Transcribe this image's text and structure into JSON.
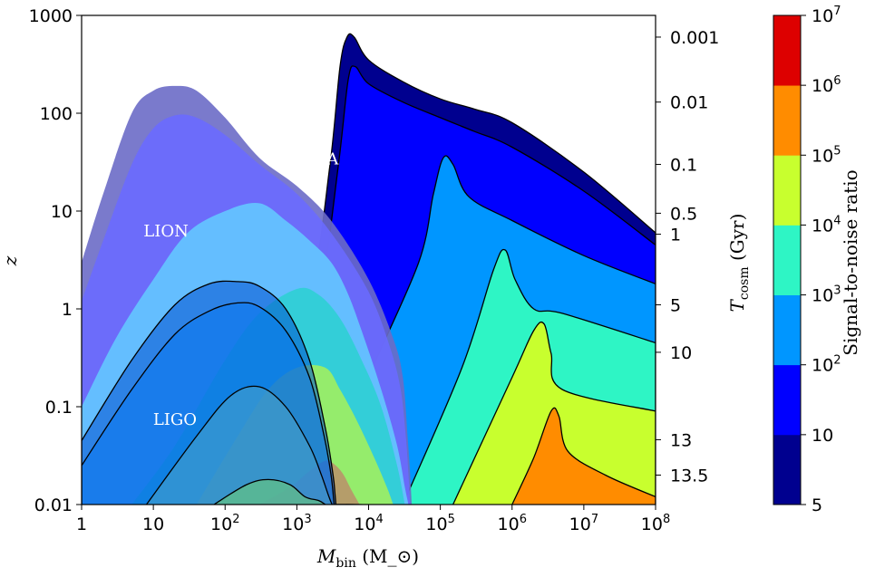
{
  "chart_data": {
    "type": "area",
    "title": "",
    "xlabel": "M_bin (M_⊙)",
    "ylabel": "z",
    "ylabel_right": "T_cosm (Gyr)",
    "xscale": "log",
    "yscale": "log",
    "xlim": [
      1,
      100000000
    ],
    "ylim": [
      0.01,
      1000
    ],
    "x_ticks": [
      {
        "v": 1,
        "b": "1",
        "e": ""
      },
      {
        "v": 10,
        "b": "10",
        "e": ""
      },
      {
        "v": 100,
        "b": "10",
        "e": "2"
      },
      {
        "v": 1000,
        "b": "10",
        "e": "3"
      },
      {
        "v": 10000,
        "b": "10",
        "e": "4"
      },
      {
        "v": 100000,
        "b": "10",
        "e": "5"
      },
      {
        "v": 1000000,
        "b": "10",
        "e": "6"
      },
      {
        "v": 10000000,
        "b": "10",
        "e": "7"
      },
      {
        "v": 100000000,
        "b": "10",
        "e": "8"
      }
    ],
    "y_ticks": [
      {
        "v": 0.01,
        "label": "0.01"
      },
      {
        "v": 0.1,
        "label": "0.1"
      },
      {
        "v": 1,
        "label": "1"
      },
      {
        "v": 10,
        "label": "10"
      },
      {
        "v": 100,
        "label": "100"
      },
      {
        "v": 1000,
        "label": "1000"
      }
    ],
    "right_ticks": [
      {
        "z": 600,
        "label": "0.001"
      },
      {
        "z": 130,
        "label": "0.01"
      },
      {
        "z": 30,
        "label": "0.1"
      },
      {
        "z": 9.5,
        "label": "0.5"
      },
      {
        "z": 5.8,
        "label": "1"
      },
      {
        "z": 1.1,
        "label": "5"
      },
      {
        "z": 0.36,
        "label": "10"
      },
      {
        "z": 0.046,
        "label": "13"
      },
      {
        "z": 0.02,
        "label": "13.5"
      }
    ],
    "colorbar": {
      "label": "Signal-to-noise ratio",
      "levels": [
        {
          "b": "5",
          "e": ""
        },
        {
          "b": "10",
          "e": ""
        },
        {
          "b": "10",
          "e": "2"
        },
        {
          "b": "10",
          "e": "3"
        },
        {
          "b": "10",
          "e": "4"
        },
        {
          "b": "10",
          "e": "5"
        },
        {
          "b": "10",
          "e": "6"
        },
        {
          "b": "10",
          "e": "7"
        }
      ],
      "colors": [
        "#00008f",
        "#0000ff",
        "#0096ff",
        "#2ef5c5",
        "#c8ff2e",
        "#ff8c00",
        "#dd0000"
      ]
    },
    "annotations": [
      {
        "text": "LISA",
        "x": 2000,
        "y": 30
      },
      {
        "text": "LION",
        "x": 15,
        "y": 5.5
      },
      {
        "text": "LIGO",
        "x": 20,
        "y": 0.065
      }
    ],
    "detectors": [
      {
        "name": "LISA",
        "outline": "#000000",
        "snr_contours": [
          {
            "level": "5",
            "color": "#00008f",
            "x": [
              280,
              1500,
              2900,
              4000,
              5000,
              6300,
              10000,
              30000,
              100000,
              300000,
              1000000,
              10000000,
              100000000
            ],
            "y": [
              0.01,
              1.2,
              30,
              300,
              600,
              600,
              350,
              210,
              140,
              110,
              80,
              25,
              6
            ]
          },
          {
            "level": "10",
            "color": "#0000ff",
            "x": [
              550,
              2000,
              3800,
              5200,
              6500,
              10000,
              30000,
              100000,
              300000,
              1000000,
              10000000,
              100000000
            ],
            "y": [
              0.01,
              1,
              30,
              220,
              300,
              200,
              130,
              90,
              65,
              45,
              16,
              4.5
            ]
          },
          {
            "level": "10^2",
            "color": "#0096ff",
            "x": [
              2000,
              10000,
              50000,
              80000,
              110000,
              150000,
              250000,
              1000000,
              10000000,
              100000000
            ],
            "y": [
              0.01,
              0.2,
              3,
              15,
              35,
              30,
              14,
              8,
              3.5,
              1.8
            ]
          },
          {
            "level": "10^3",
            "color": "#2ef5c5",
            "x": [
              30000,
              200000,
              550000,
              800000,
              1100000,
              2000000,
              5000000,
              100000000
            ],
            "y": [
              0.01,
              0.25,
              2.5,
              4,
              2,
              1,
              0.9,
              0.45
            ]
          },
          {
            "level": "10^4",
            "color": "#c8ff2e",
            "x": [
              150000,
              1000000,
              2000000,
              2800000,
              3500000,
              5000000,
              100000000
            ],
            "y": [
              0.01,
              0.2,
              0.6,
              0.7,
              0.35,
              0.15,
              0.09
            ]
          },
          {
            "level": "10^5",
            "color": "#ff8c00",
            "x": [
              1000000,
              2000000,
              3500000,
              4500000,
              6000000,
              20000000,
              100000000
            ],
            "y": [
              0.01,
              0.03,
              0.09,
              0.08,
              0.035,
              0.02,
              0.012
            ]
          }
        ]
      },
      {
        "name": "LION",
        "outline": "none",
        "snr_contours": [
          {
            "level": "5",
            "color": "#6b6bc6",
            "x": [
              1,
              2,
              5,
              10,
              20,
              40,
              100,
              300,
              1000,
              3000,
              10000,
              22000,
              30000,
              35000,
              38000,
              40000
            ],
            "y": [
              3,
              15,
              100,
              170,
              190,
              170,
              90,
              35,
              18,
              8,
              2,
              0.5,
              0.2,
              0.05,
              0.02,
              0.01
            ]
          },
          {
            "level": "10",
            "color": "#6a6aff",
            "x": [
              1,
              2,
              5,
              10,
              20,
              40,
              100,
              300,
              1000,
              3000,
              10000,
              20000,
              28000,
              33000,
              36000,
              38000
            ],
            "y": [
              1.2,
              5,
              30,
              70,
              95,
              90,
              60,
              30,
              15,
              6,
              1.5,
              0.4,
              0.15,
              0.05,
              0.02,
              0.01
            ]
          },
          {
            "level": "10^2",
            "color": "#64c8ff",
            "x": [
              1,
              3,
              10,
              30,
              100,
              300,
              700,
              1500,
              3000,
              5000,
              8000,
              15000,
              25000,
              32000,
              36000
            ],
            "y": [
              0.1,
              0.5,
              2,
              6,
              10,
              12,
              8,
              5,
              3,
              1.5,
              0.6,
              0.15,
              0.04,
              0.015,
              0.01
            ]
          },
          {
            "level": "10^3",
            "color": "#2ecfd4",
            "x": [
              5,
              20,
              100,
              300,
              1000,
              2000,
              4000,
              8000,
              15000,
              25000,
              32000
            ],
            "y": [
              0.01,
              0.04,
              0.3,
              0.9,
              1.6,
              1.4,
              0.8,
              0.3,
              0.1,
              0.025,
              0.01
            ]
          },
          {
            "level": "10^4",
            "color": "#a0f060",
            "x": [
              40,
              150,
              400,
              1000,
              2500,
              4000,
              7000,
              12000,
              18000,
              22000
            ],
            "y": [
              0.01,
              0.05,
              0.15,
              0.25,
              0.25,
              0.15,
              0.07,
              0.03,
              0.015,
              0.01
            ]
          },
          {
            "level": "10^5",
            "color": "#b8956a",
            "x": [
              300,
              800,
              1500,
              2500,
              3500,
              4500,
              5500,
              6500,
              7500
            ],
            "y": [
              0.01,
              0.015,
              0.022,
              0.028,
              0.025,
              0.02,
              0.015,
              0.012,
              0.01
            ]
          }
        ]
      },
      {
        "name": "LIGO",
        "outline": "#000000",
        "snr_contours": [
          {
            "level": "5",
            "color": "#0050d0",
            "x": [
              1,
              5,
              20,
              60,
              150,
              300,
              700,
              1500,
              2500,
              3200,
              3400,
              3500
            ],
            "y": [
              0.045,
              0.3,
              1.1,
              1.8,
              1.9,
              1.7,
              1,
              0.3,
              0.06,
              0.02,
              0.013,
              0.01
            ]
          },
          {
            "level": "10",
            "color": "#0a78f0",
            "x": [
              1,
              5,
              20,
              60,
              150,
              300,
              700,
              1500,
              2400,
              3000,
              3300
            ],
            "y": [
              0.025,
              0.15,
              0.55,
              0.95,
              1.15,
              1.05,
              0.6,
              0.2,
              0.05,
              0.02,
              0.01
            ]
          },
          {
            "level": "10^2",
            "color": "#4ba0c8",
            "x": [
              8,
              40,
              120,
              300,
              700,
              1500,
              2200,
              2800,
              3100
            ],
            "y": [
              0.01,
              0.05,
              0.13,
              0.16,
              0.1,
              0.04,
              0.02,
              0.012,
              0.01
            ]
          },
          {
            "level": "10^3",
            "color": "#6fd070",
            "x": [
              70,
              200,
              400,
              800,
              1300,
              2000,
              2500
            ],
            "y": [
              0.01,
              0.016,
              0.018,
              0.016,
              0.012,
              0.011,
              0.01
            ]
          }
        ]
      }
    ]
  }
}
